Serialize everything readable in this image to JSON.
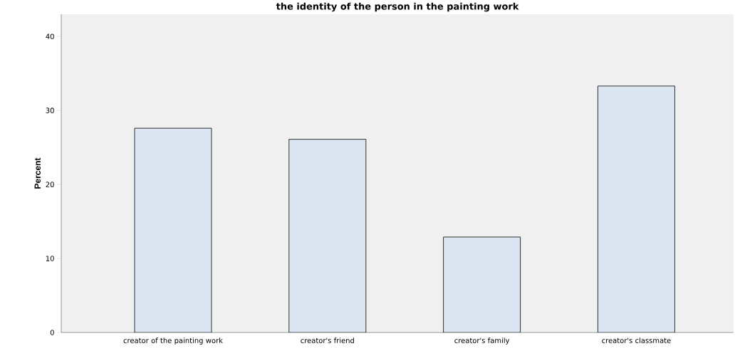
{
  "chart_data": {
    "type": "bar",
    "title": "the identity of the person in the painting work",
    "ylabel": "Percent",
    "categories": [
      "creator of the painting work",
      "creator's friend",
      "creator's family",
      "creator's classmate"
    ],
    "values": [
      27.6,
      26.1,
      12.9,
      33.3
    ],
    "color": "#dce6f2",
    "ylim": [
      0,
      43
    ],
    "yticks": [
      0,
      10,
      20,
      30,
      40
    ]
  }
}
